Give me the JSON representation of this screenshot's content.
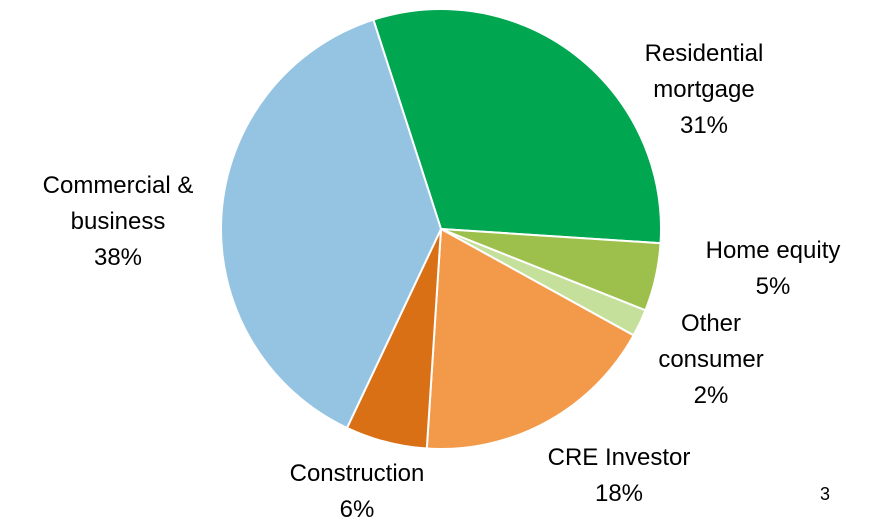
{
  "chart_data": {
    "type": "pie",
    "categories": [
      "Residential mortgage",
      "Home equity",
      "Other consumer",
      "CRE Investor",
      "Construction",
      "Commercial & business"
    ],
    "values": [
      31,
      5,
      2,
      18,
      6,
      38
    ],
    "value_labels": [
      "31%",
      "5%",
      "2%",
      "18%",
      "6%",
      "38%"
    ],
    "colors": [
      "#00a650",
      "#9dc04c",
      "#c5e09a",
      "#f29a4a",
      "#d97016",
      "#95c3e2"
    ]
  },
  "page_number": "3"
}
